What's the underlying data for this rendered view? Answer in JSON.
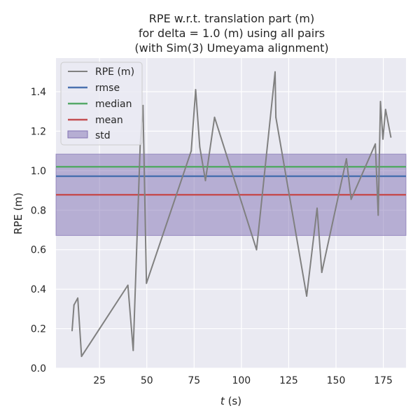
{
  "chart_data": {
    "type": "line",
    "title_lines": [
      "RPE w.r.t. translation part (m)",
      "for delta = 1.0 (m) using all pairs",
      "(with Sim(3) Umeyama alignment)"
    ],
    "xlabel_var": "t",
    "xlabel_unit": " (s)",
    "ylabel": "RPE (m)",
    "xlim": [
      2,
      187
    ],
    "ylim": [
      0,
      1.57
    ],
    "xticks": [
      25,
      50,
      75,
      100,
      125,
      150,
      175
    ],
    "yticks": [
      0.0,
      0.2,
      0.4,
      0.6,
      0.8,
      1.0,
      1.2,
      1.4
    ],
    "grid": true,
    "legend_position": "upper-left",
    "colors": {
      "background": "#eaeaf2",
      "grid": "#ffffff",
      "rpe": "#808080",
      "rmse": "#4c72b0",
      "median": "#55a868",
      "mean": "#c44e52",
      "std": "#8172b3"
    },
    "series": [
      {
        "name": "RPE (m)",
        "x": [
          10.5,
          11.5,
          13.5,
          15.5,
          40.0,
          42.8,
          46.5,
          48.0,
          49.8,
          73.5,
          75.8,
          78.0,
          81.0,
          85.8,
          108.0,
          117.8,
          118.2,
          134.5,
          140.0,
          142.5,
          155.5,
          158.0,
          170.8,
          172.3,
          173.5,
          174.8,
          176.2,
          179.0
        ],
        "y": [
          0.19,
          0.32,
          0.355,
          0.06,
          0.42,
          0.09,
          1.13,
          1.33,
          0.43,
          1.1,
          1.41,
          1.12,
          0.95,
          1.27,
          0.6,
          1.5,
          1.27,
          0.365,
          0.81,
          0.485,
          1.06,
          0.855,
          1.135,
          0.775,
          1.35,
          1.16,
          1.31,
          1.17
        ]
      }
    ],
    "stats": {
      "rmse": {
        "name": "rmse",
        "value": 0.972
      },
      "median": {
        "name": "median",
        "value": 1.02
      },
      "mean": {
        "name": "mean",
        "value": 0.878
      },
      "std": {
        "name": "std",
        "lower": 0.672,
        "upper": 1.084
      }
    }
  }
}
